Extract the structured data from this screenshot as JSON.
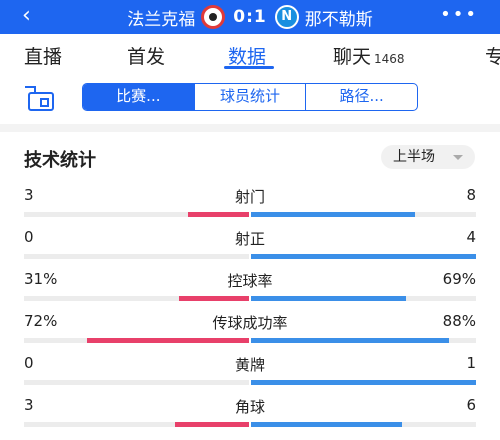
{
  "header": {
    "back_icon": "chevron-left-icon",
    "home_team": "法兰克福",
    "score": "0:1",
    "away_team": "那不勒斯",
    "away_crest_letter": "N",
    "more_label": "•••"
  },
  "tabs": [
    {
      "label": "直播",
      "count": ""
    },
    {
      "label": "首发",
      "count": ""
    },
    {
      "label": "数据",
      "count": "",
      "active": true
    },
    {
      "label": "聊天",
      "count": "1468"
    },
    {
      "label": "专",
      "count": ""
    }
  ],
  "segment": {
    "items": [
      "比赛...",
      "球员统计",
      "路径..."
    ],
    "active_index": 0
  },
  "stats": {
    "title": "技术统计",
    "period": "上半场",
    "rows": [
      {
        "name": "射门",
        "home": "3",
        "away": "8",
        "home_fill": 0.27,
        "away_fill": 0.73
      },
      {
        "name": "射正",
        "home": "0",
        "away": "4",
        "home_fill": 0.0,
        "away_fill": 1.0
      },
      {
        "name": "控球率",
        "home": "31%",
        "away": "69%",
        "home_fill": 0.31,
        "away_fill": 0.69
      },
      {
        "name": "传球成功率",
        "home": "72%",
        "away": "88%",
        "home_fill": 0.72,
        "away_fill": 0.88
      },
      {
        "name": "黄牌",
        "home": "0",
        "away": "1",
        "home_fill": 0.0,
        "away_fill": 1.0
      },
      {
        "name": "角球",
        "home": "3",
        "away": "6",
        "home_fill": 0.33,
        "away_fill": 0.67
      }
    ]
  },
  "colors": {
    "accent": "#1e66f0",
    "home_bar": "#e8406a",
    "away_bar": "#3b8fe8"
  }
}
